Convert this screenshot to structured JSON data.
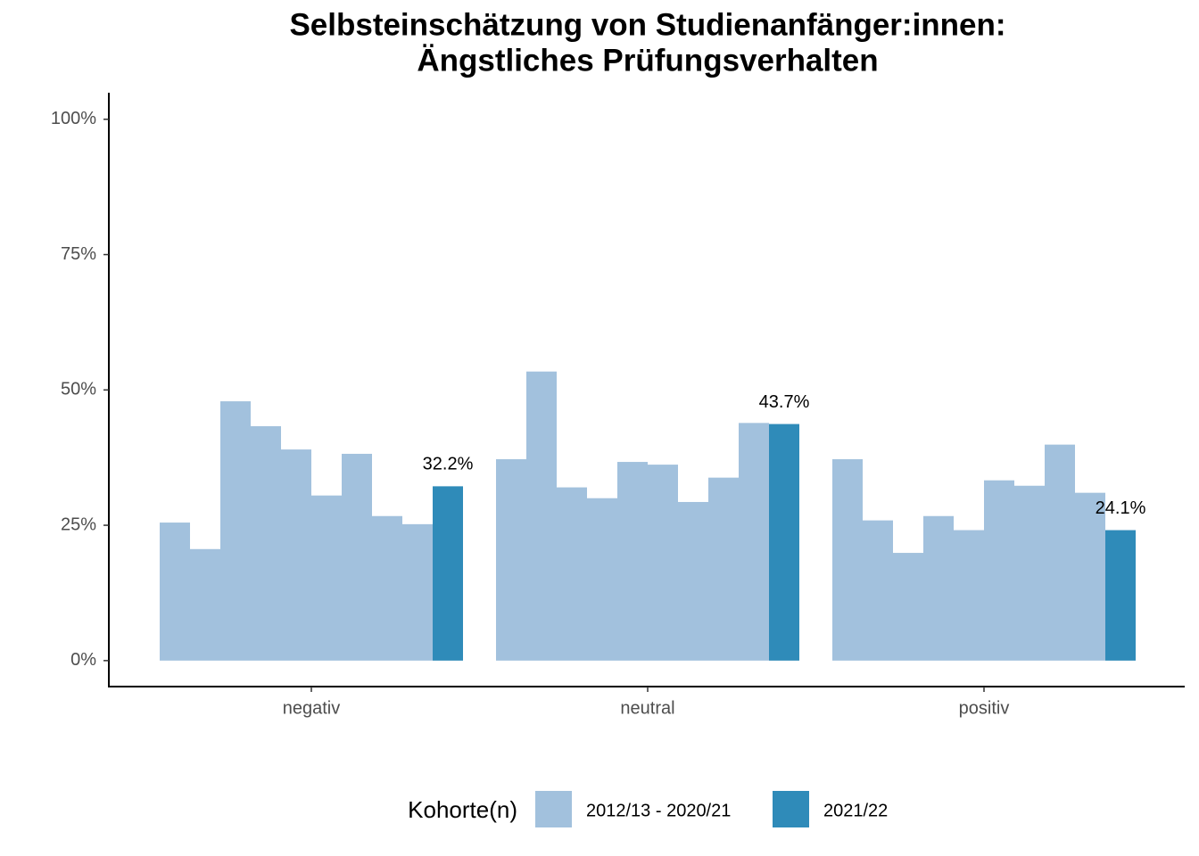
{
  "chart_data": {
    "type": "bar",
    "title": [
      "Selbsteinschätzung von Studienanfänger:innen:",
      "Ängstliches Prüfungsverhalten"
    ],
    "categories": [
      "negativ",
      "neutral",
      "positiv"
    ],
    "legend_title": "Kohorte(n)",
    "series": [
      {
        "name": "2012/13 - 2020/21",
        "color": "#a2c1dd",
        "values": [
          [
            25.5,
            20.6,
            47.9,
            43.3,
            39.0,
            30.5,
            38.2,
            26.7,
            25.2
          ],
          [
            37.2,
            53.4,
            32.0,
            30.0,
            36.7,
            36.2,
            29.3,
            33.8,
            43.9
          ],
          [
            37.2,
            25.9,
            19.9,
            26.7,
            24.1,
            33.3,
            32.3,
            39.9,
            31.0
          ]
        ]
      },
      {
        "name": "2021/22",
        "color": "#2f8bb9",
        "values": [
          32.2,
          43.7,
          24.1
        ],
        "value_labels": [
          "32.2%",
          "43.7%",
          "24.1%"
        ]
      }
    ],
    "ylim": [
      -4.8,
      104.9
    ],
    "yticks": [
      {
        "value": 0,
        "label": "0%"
      },
      {
        "value": 25,
        "label": "25%"
      },
      {
        "value": 50,
        "label": "50%"
      },
      {
        "value": 75,
        "label": "75%"
      },
      {
        "value": 100,
        "label": "100%"
      }
    ]
  }
}
